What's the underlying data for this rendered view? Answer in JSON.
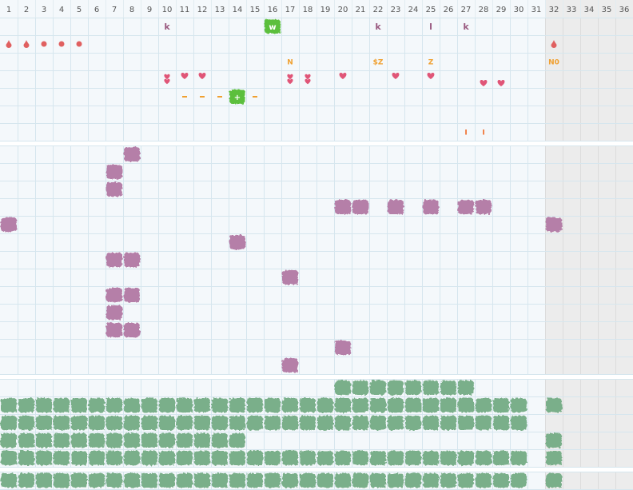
{
  "header": {
    "columns": [
      "1",
      "2",
      "3",
      "4",
      "5",
      "6",
      "7",
      "8",
      "9",
      "10",
      "11",
      "12",
      "13",
      "14",
      "15",
      "16",
      "17",
      "18",
      "19",
      "20",
      "21",
      "22",
      "23",
      "24",
      "25",
      "26",
      "27",
      "28",
      "29",
      "30",
      "31",
      "32",
      "33",
      "34",
      "35",
      "36"
    ]
  },
  "markers": [
    "k",
    "w",
    "k",
    "l",
    "k",
    "N",
    "$Z",
    "Z",
    "N0",
    "+",
    "I",
    "I"
  ]
}
